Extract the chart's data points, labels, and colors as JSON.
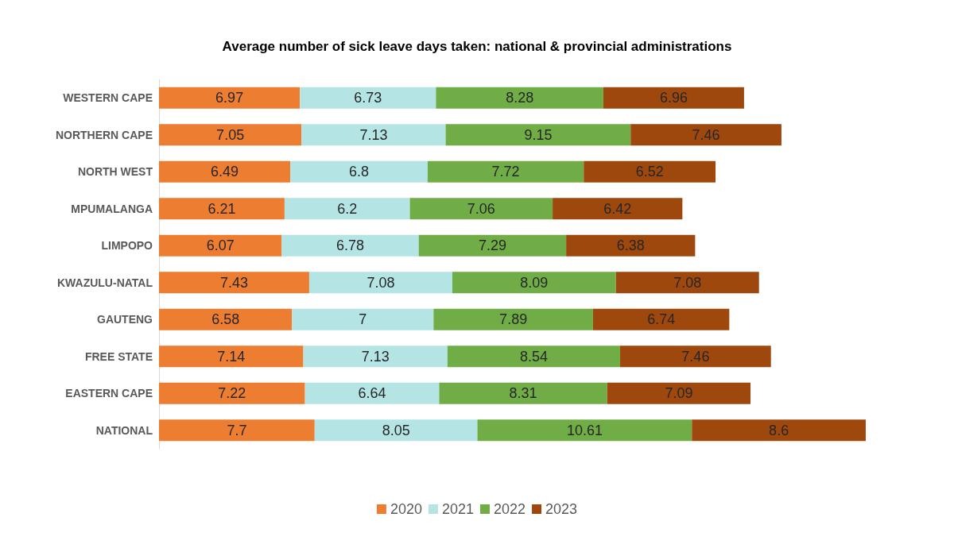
{
  "chart_data": {
    "type": "bar",
    "orientation": "horizontal",
    "stacked": true,
    "data_labels": true,
    "legend": "bottom",
    "title": "Average number of sick leave days taken: national & provincial administrations",
    "categories": [
      "WESTERN CAPE",
      "NORTHERN CAPE",
      "NORTH WEST",
      "MPUMALANGA",
      "LIMPOPO",
      "KWAZULU-NATAL",
      "GAUTENG",
      "FREE STATE",
      "EASTERN CAPE",
      "NATIONAL"
    ],
    "series": [
      {
        "name": "2020",
        "color": "#ed7d31",
        "values": [
          6.97,
          7.05,
          6.49,
          6.21,
          6.07,
          7.43,
          6.58,
          7.14,
          7.22,
          7.7
        ]
      },
      {
        "name": "2021",
        "color": "#b4e4e4",
        "values": [
          6.73,
          7.13,
          6.8,
          6.2,
          6.78,
          7.08,
          7,
          7.13,
          6.64,
          8.05
        ]
      },
      {
        "name": "2022",
        "color": "#70ad47",
        "values": [
          8.28,
          9.15,
          7.72,
          7.06,
          7.29,
          8.09,
          7.89,
          8.54,
          8.31,
          10.61
        ]
      },
      {
        "name": "2023",
        "color": "#9e480e",
        "values": [
          6.96,
          7.46,
          6.52,
          6.42,
          6.38,
          7.08,
          6.74,
          7.46,
          7.09,
          8.6
        ]
      }
    ]
  }
}
